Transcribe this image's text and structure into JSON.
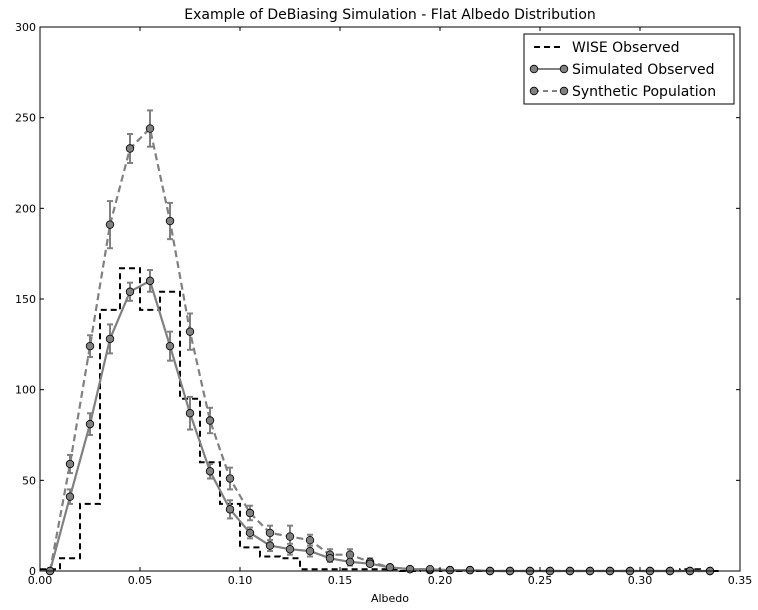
{
  "chart_data": {
    "type": "line",
    "title": "Example of DeBiasing Simulation - Flat Albedo Distribution",
    "xlabel": "Albedo",
    "ylabel": "",
    "xlim": [
      0.0,
      0.35
    ],
    "ylim": [
      0,
      300
    ],
    "xticks": [
      "0.00",
      "0.05",
      "0.10",
      "0.15",
      "0.20",
      "0.25",
      "0.30",
      "0.35"
    ],
    "yticks": [
      "0",
      "50",
      "100",
      "150",
      "200",
      "250",
      "300"
    ],
    "grid": false,
    "legend_position": "top-right",
    "series": [
      {
        "name": "WISE Observed",
        "style": "dashed-step",
        "color": "#000000",
        "bin_edges": [
          0.0,
          0.01,
          0.02,
          0.03,
          0.04,
          0.05,
          0.06,
          0.07,
          0.08,
          0.09,
          0.1,
          0.11,
          0.12,
          0.13,
          0.14,
          0.15,
          0.16,
          0.17,
          0.18,
          0.19,
          0.2,
          0.21,
          0.22,
          0.23,
          0.24,
          0.25,
          0.26,
          0.27,
          0.28,
          0.29,
          0.3,
          0.31,
          0.32,
          0.33,
          0.34
        ],
        "values": [
          1,
          7,
          37,
          144,
          167,
          144,
          154,
          95,
          60,
          37,
          13,
          8,
          7,
          1,
          1,
          1,
          1,
          1,
          0,
          1,
          0,
          0,
          0,
          0,
          0,
          0,
          0,
          0,
          0,
          0,
          0,
          0,
          1,
          0
        ]
      },
      {
        "name": "Simulated Observed",
        "style": "solid-marker",
        "color": "#808080",
        "x": [
          0.005,
          0.015,
          0.025,
          0.035,
          0.045,
          0.055,
          0.065,
          0.075,
          0.085,
          0.095,
          0.105,
          0.115,
          0.125,
          0.135,
          0.145,
          0.155,
          0.165,
          0.175,
          0.185,
          0.195,
          0.205,
          0.215,
          0.225,
          0.235,
          0.245,
          0.255,
          0.265,
          0.275,
          0.285,
          0.295,
          0.305,
          0.315,
          0.325,
          0.335
        ],
        "values": [
          0,
          41,
          81,
          128,
          154,
          160,
          124,
          87,
          55,
          34,
          21,
          14,
          12,
          11,
          7,
          5,
          4,
          2,
          1,
          1,
          0.5,
          0.5,
          0,
          0,
          0,
          0,
          0,
          0,
          0,
          0,
          0,
          0,
          0,
          0
        ],
        "errors": [
          0,
          4,
          6,
          8,
          5,
          6,
          8,
          9,
          4,
          5,
          3,
          3,
          3,
          3,
          2,
          2,
          1,
          1,
          1,
          1,
          0,
          0,
          0,
          0,
          0,
          0,
          0,
          0,
          0,
          0,
          0,
          0,
          0,
          0
        ]
      },
      {
        "name": "Synthetic Population",
        "style": "dashed-marker",
        "color": "#808080",
        "x": [
          0.005,
          0.015,
          0.025,
          0.035,
          0.045,
          0.055,
          0.065,
          0.075,
          0.085,
          0.095,
          0.105,
          0.115,
          0.125,
          0.135,
          0.145,
          0.155,
          0.165,
          0.175,
          0.185,
          0.195,
          0.205,
          0.215,
          0.225,
          0.235,
          0.245,
          0.255,
          0.265,
          0.275,
          0.285,
          0.295,
          0.305,
          0.315,
          0.325,
          0.335
        ],
        "values": [
          0,
          59,
          124,
          191,
          233,
          244,
          193,
          132,
          83,
          51,
          32,
          21,
          19,
          17,
          9,
          9,
          5,
          2,
          1,
          0.5,
          0.5,
          0.5,
          0,
          0,
          0,
          0,
          0,
          0,
          0,
          0,
          0,
          0,
          0,
          0
        ],
        "errors": [
          0,
          5,
          6,
          13,
          8,
          10,
          10,
          10,
          7,
          6,
          4,
          4,
          6,
          3,
          3,
          3,
          2,
          1,
          1,
          0,
          0,
          0,
          0,
          0,
          0,
          0,
          0,
          0,
          0,
          0,
          0,
          0,
          0,
          0
        ]
      }
    ]
  }
}
